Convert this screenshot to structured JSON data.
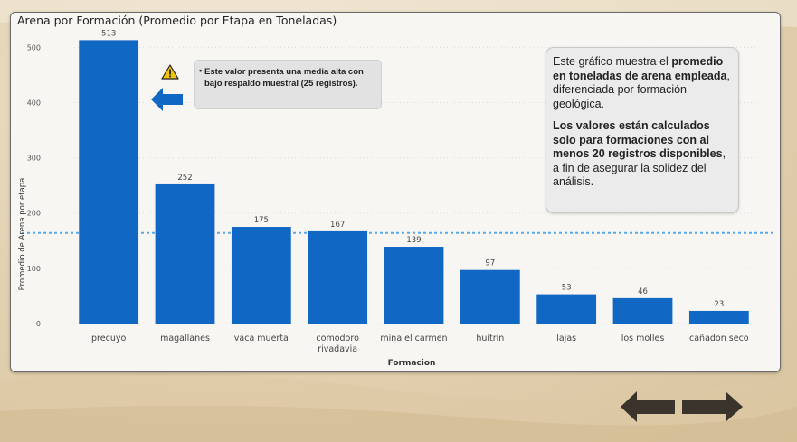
{
  "chart_data": {
    "type": "bar",
    "title": "Arena por Formación (Promedio por Etapa en Toneladas)",
    "xlabel": "Formacion",
    "ylabel": "Promedio de Arena por etapa",
    "categories": [
      "precuyo",
      "magallanes",
      "vaca muerta",
      "comodoro rivadavia",
      "mina el carmen",
      "huitrín",
      "lajas",
      "los molles",
      "cañadon seco"
    ],
    "category_lines": [
      [
        "precuyo"
      ],
      [
        "magallanes"
      ],
      [
        "vaca muerta"
      ],
      [
        "comodoro",
        "rivadavia"
      ],
      [
        "mina el carmen"
      ],
      [
        "huitrín"
      ],
      [
        "lajas"
      ],
      [
        "los molles"
      ],
      [
        "cañadon seco"
      ]
    ],
    "values": [
      513,
      252,
      175,
      167,
      139,
      97,
      53,
      46,
      23
    ],
    "y_ticks": [
      0,
      100,
      200,
      300,
      400,
      500
    ],
    "ylim": [
      0,
      530
    ],
    "average_line": 164,
    "grid": true,
    "bar_color": "#1167c4",
    "average_line_color": "#5aa9e6"
  },
  "info_box": {
    "p1_pre": "Este gráfico muestra el ",
    "p1_bold": "promedio en toneladas de arena empleada",
    "p1_post": ", diferenciada por formación geológica.",
    "p2_bold": "Los valores están calculados solo para formaciones con al menos 20 registros disponibles",
    "p2_post": ", a fin de asegurar la solidez del análisis."
  },
  "annotation": {
    "bullet": "•",
    "text": "Este valor presenta una media alta con bajo respaldo muestral (25 registros).",
    "warning_icon": "warning-triangle-icon",
    "arrow_icon": "arrow-left-icon",
    "arrow_color": "#1167c4"
  },
  "nav": {
    "back_icon": "arrow-left-icon",
    "next_icon": "arrow-right-icon",
    "color": "#3a342d"
  }
}
